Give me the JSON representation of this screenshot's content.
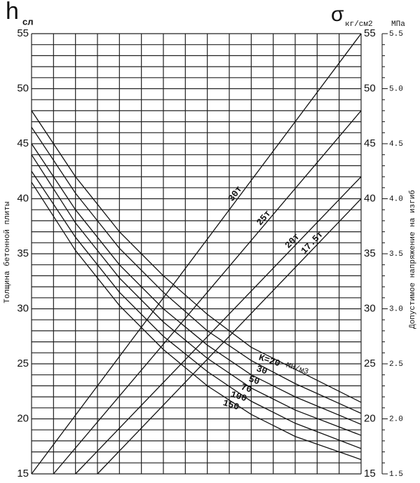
{
  "chart_data": {
    "type": "line",
    "title_left": {
      "symbol": "h",
      "subscript": "сл"
    },
    "title_right": {
      "symbol": "σ",
      "subscript": "кг/см2"
    },
    "ylabel": "Толщина бетонной плиты",
    "y2label": "Допустимое напряжение на изгиб",
    "xlim": [
      0,
      15
    ],
    "x_divisions": 15,
    "ylim": [
      15,
      55
    ],
    "yticks": [
      15,
      20,
      25,
      30,
      35,
      40,
      45,
      50,
      55
    ],
    "grid_y_step": 1,
    "y2lim": [
      15,
      55
    ],
    "y2ticks": [
      15,
      20,
      25,
      30,
      35,
      40,
      45,
      50,
      55
    ],
    "mpa_axis": {
      "label": "МПа",
      "lim": [
        1.5,
        5.5
      ],
      "minor_step": 0.1,
      "ticks": [
        1.5,
        {
          "value": 2,
          "label": "2.0"
        },
        2.5,
        {
          "value": 3,
          "label": "3.0"
        },
        3.5,
        {
          "value": 4,
          "label": "4.0"
        },
        4.5,
        {
          "value": 5,
          "label": "5.0"
        },
        5.5
      ]
    },
    "grid": true,
    "series": [
      {
        "name": "30т",
        "color": "#111",
        "x": [
          0,
          15
        ],
        "values": [
          15,
          55
        ]
      },
      {
        "name": "25т",
        "color": "#111",
        "x": [
          1,
          15
        ],
        "values": [
          15,
          48
        ]
      },
      {
        "name": "20т",
        "color": "#111",
        "x": [
          2,
          15
        ],
        "values": [
          15,
          42
        ]
      },
      {
        "name": "17.5т",
        "color": "#111",
        "x": [
          3,
          15
        ],
        "values": [
          15,
          40
        ]
      },
      {
        "name": "К=20",
        "color": "#111",
        "x": [
          0,
          2,
          4,
          6,
          8,
          10,
          12,
          15
        ],
        "values": [
          48,
          42,
          37,
          33,
          29.5,
          26.5,
          24.5,
          21.5
        ]
      },
      {
        "name": "30",
        "color": "#111",
        "x": [
          0,
          2,
          4,
          6,
          8,
          10,
          12,
          15
        ],
        "values": [
          46.5,
          40.5,
          35.5,
          31.5,
          28,
          25.3,
          23.2,
          20.5
        ]
      },
      {
        "name": "50",
        "color": "#111",
        "x": [
          0,
          2,
          4,
          6,
          8,
          10,
          12,
          15
        ],
        "values": [
          45,
          39,
          34,
          30,
          26.7,
          24,
          22,
          19.5
        ]
      },
      {
        "name": "70",
        "color": "#111",
        "x": [
          0,
          2,
          4,
          6,
          8,
          10,
          12,
          15
        ],
        "values": [
          44,
          37.8,
          32.8,
          28.8,
          25.5,
          22.8,
          20.8,
          18.5
        ]
      },
      {
        "name": "100",
        "color": "#111",
        "x": [
          0,
          2,
          4,
          6,
          8,
          10,
          12,
          15
        ],
        "values": [
          42.5,
          36.5,
          31.5,
          27.5,
          24.3,
          21.6,
          19.6,
          17.3
        ]
      },
      {
        "name": "150",
        "color": "#111",
        "x": [
          0,
          2,
          4,
          6,
          8,
          10,
          12,
          15
        ],
        "values": [
          41.5,
          35.3,
          30.3,
          26.3,
          23,
          20.4,
          18.4,
          16.3
        ]
      }
    ],
    "k_unit": "МН/м3"
  }
}
